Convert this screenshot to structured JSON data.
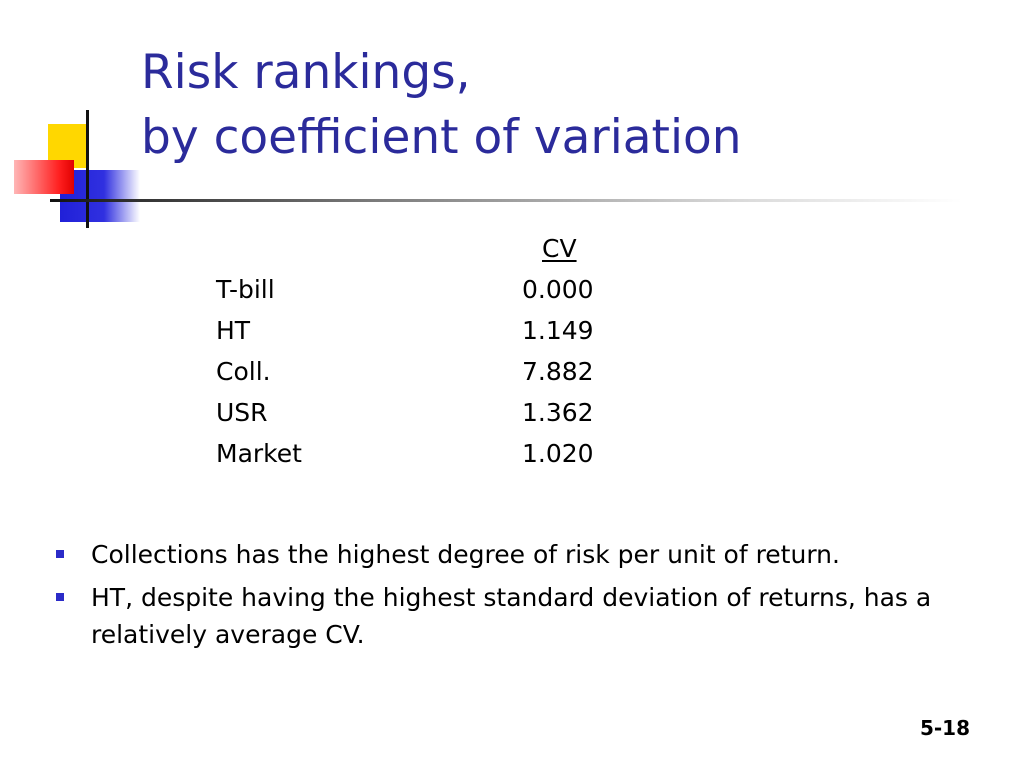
{
  "slide": {
    "title_line1": "Risk rankings,",
    "title_line2": "by coefficient of variation",
    "table": {
      "column_header": "CV",
      "rows": [
        {
          "label": "T-bill",
          "value": "0.000"
        },
        {
          "label": "HT",
          "value": "1.149"
        },
        {
          "label": "Coll.",
          "value": "7.882"
        },
        {
          "label": "USR",
          "value": "1.362"
        },
        {
          "label": "Market",
          "value": "1.020"
        }
      ]
    },
    "bullets": [
      "Collections has the highest degree of risk per unit of return.",
      "HT, despite having the highest standard deviation of returns, has a relatively average CV."
    ],
    "page_number": "5-18"
  },
  "theme": {
    "title_color": "#2b2b9b",
    "bullet_color": "#2b2bc8",
    "logo_colors": {
      "yellow": "#ffd700",
      "red": "#ff2020",
      "blue": "#2020d8"
    }
  }
}
